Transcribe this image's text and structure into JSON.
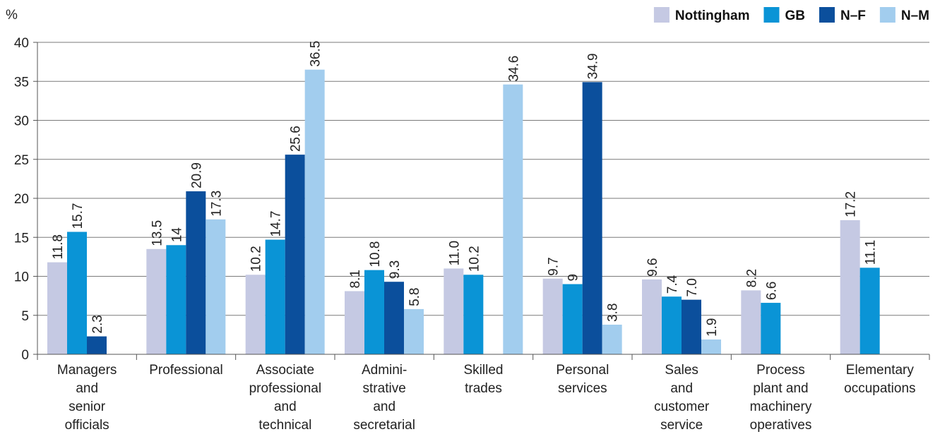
{
  "chart_data": {
    "type": "bar",
    "y_unit": "%",
    "ylim": [
      0,
      40
    ],
    "yticks": [
      0,
      5,
      10,
      15,
      20,
      25,
      30,
      35,
      40
    ],
    "grid": true,
    "legend_position": "top-right",
    "categories": [
      [
        "Managers",
        "and",
        "senior",
        "officials"
      ],
      [
        "Professional"
      ],
      [
        "Associate",
        "professional",
        "and",
        "technical"
      ],
      [
        "Admini-",
        "strative",
        "and",
        "secretarial"
      ],
      [
        "Skilled",
        "trades"
      ],
      [
        "Personal",
        "services"
      ],
      [
        "Sales",
        "and",
        "customer",
        "service"
      ],
      [
        "Process",
        "plant and",
        "machinery",
        "operatives"
      ],
      [
        "Elementary",
        "occupations"
      ]
    ],
    "series": [
      {
        "name": "Nottingham",
        "color": "#c5c9e3",
        "values": [
          11.8,
          13.5,
          10.2,
          8.1,
          11.0,
          9.7,
          9.6,
          8.2,
          17.2
        ],
        "labels": [
          "11.8",
          "13.5",
          "10.2",
          "8.1",
          "11.0",
          "9.7",
          "9.6",
          "8.2",
          "17.2"
        ]
      },
      {
        "name": "GB",
        "color": "#0a94d6",
        "values": [
          15.7,
          14,
          14.7,
          10.8,
          10.2,
          9,
          7.4,
          6.6,
          11.1
        ],
        "labels": [
          "15.7",
          "14",
          "14.7",
          "10.8",
          "10.2",
          "9",
          "7.4",
          "6.6",
          "11.1"
        ]
      },
      {
        "name": "N–F",
        "color": "#0b4f9c",
        "values": [
          2.3,
          20.9,
          25.6,
          9.3,
          null,
          34.9,
          7.0,
          null,
          null
        ],
        "labels": [
          "2.3",
          "20.9",
          "25.6",
          "9.3",
          null,
          "34.9",
          "7.0",
          null,
          null
        ]
      },
      {
        "name": "N–M",
        "color": "#a2cdee",
        "values": [
          null,
          17.3,
          36.5,
          5.8,
          34.6,
          3.8,
          1.9,
          null,
          null
        ],
        "labels": [
          null,
          "17.3",
          "36.5",
          "5.8",
          "34.6",
          "3.8",
          "1.9",
          null,
          null
        ]
      }
    ]
  }
}
